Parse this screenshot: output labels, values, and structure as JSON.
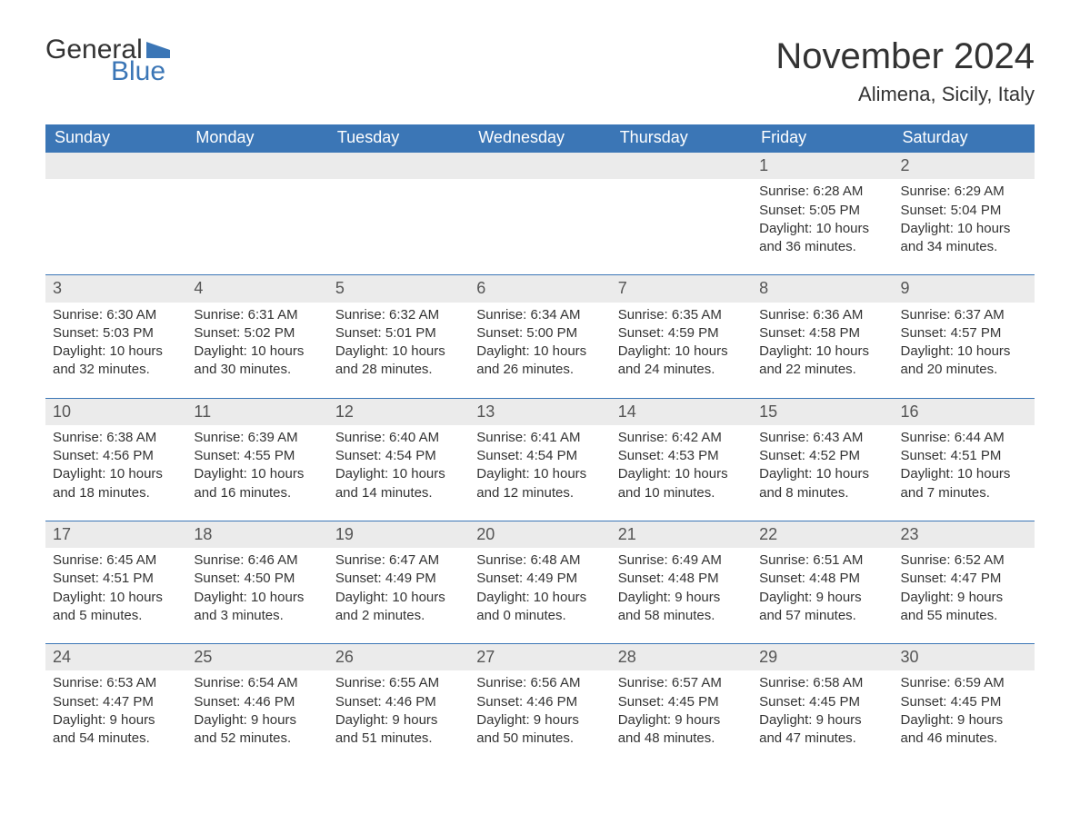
{
  "logo": {
    "text_top": "General",
    "text_bottom": "Blue",
    "flag_color": "#3b76b6"
  },
  "title": "November 2024",
  "location": "Alimena, Sicily, Italy",
  "colors": {
    "header_bg": "#3b76b6",
    "header_text": "#ffffff",
    "daynum_bg": "#ebebeb",
    "daynum_text": "#555555",
    "body_text": "#333333",
    "rule": "#3b76b6",
    "page_bg": "#ffffff"
  },
  "typography": {
    "title_fontsize": 40,
    "location_fontsize": 22,
    "weekday_fontsize": 18,
    "daynumber_fontsize": 18,
    "body_fontsize": 15
  },
  "weekdays": [
    "Sunday",
    "Monday",
    "Tuesday",
    "Wednesday",
    "Thursday",
    "Friday",
    "Saturday"
  ],
  "weeks": [
    [
      null,
      null,
      null,
      null,
      null,
      {
        "day": "1",
        "sunrise": "Sunrise: 6:28 AM",
        "sunset": "Sunset: 5:05 PM",
        "daylight1": "Daylight: 10 hours",
        "daylight2": "and 36 minutes."
      },
      {
        "day": "2",
        "sunrise": "Sunrise: 6:29 AM",
        "sunset": "Sunset: 5:04 PM",
        "daylight1": "Daylight: 10 hours",
        "daylight2": "and 34 minutes."
      }
    ],
    [
      {
        "day": "3",
        "sunrise": "Sunrise: 6:30 AM",
        "sunset": "Sunset: 5:03 PM",
        "daylight1": "Daylight: 10 hours",
        "daylight2": "and 32 minutes."
      },
      {
        "day": "4",
        "sunrise": "Sunrise: 6:31 AM",
        "sunset": "Sunset: 5:02 PM",
        "daylight1": "Daylight: 10 hours",
        "daylight2": "and 30 minutes."
      },
      {
        "day": "5",
        "sunrise": "Sunrise: 6:32 AM",
        "sunset": "Sunset: 5:01 PM",
        "daylight1": "Daylight: 10 hours",
        "daylight2": "and 28 minutes."
      },
      {
        "day": "6",
        "sunrise": "Sunrise: 6:34 AM",
        "sunset": "Sunset: 5:00 PM",
        "daylight1": "Daylight: 10 hours",
        "daylight2": "and 26 minutes."
      },
      {
        "day": "7",
        "sunrise": "Sunrise: 6:35 AM",
        "sunset": "Sunset: 4:59 PM",
        "daylight1": "Daylight: 10 hours",
        "daylight2": "and 24 minutes."
      },
      {
        "day": "8",
        "sunrise": "Sunrise: 6:36 AM",
        "sunset": "Sunset: 4:58 PM",
        "daylight1": "Daylight: 10 hours",
        "daylight2": "and 22 minutes."
      },
      {
        "day": "9",
        "sunrise": "Sunrise: 6:37 AM",
        "sunset": "Sunset: 4:57 PM",
        "daylight1": "Daylight: 10 hours",
        "daylight2": "and 20 minutes."
      }
    ],
    [
      {
        "day": "10",
        "sunrise": "Sunrise: 6:38 AM",
        "sunset": "Sunset: 4:56 PM",
        "daylight1": "Daylight: 10 hours",
        "daylight2": "and 18 minutes."
      },
      {
        "day": "11",
        "sunrise": "Sunrise: 6:39 AM",
        "sunset": "Sunset: 4:55 PM",
        "daylight1": "Daylight: 10 hours",
        "daylight2": "and 16 minutes."
      },
      {
        "day": "12",
        "sunrise": "Sunrise: 6:40 AM",
        "sunset": "Sunset: 4:54 PM",
        "daylight1": "Daylight: 10 hours",
        "daylight2": "and 14 minutes."
      },
      {
        "day": "13",
        "sunrise": "Sunrise: 6:41 AM",
        "sunset": "Sunset: 4:54 PM",
        "daylight1": "Daylight: 10 hours",
        "daylight2": "and 12 minutes."
      },
      {
        "day": "14",
        "sunrise": "Sunrise: 6:42 AM",
        "sunset": "Sunset: 4:53 PM",
        "daylight1": "Daylight: 10 hours",
        "daylight2": "and 10 minutes."
      },
      {
        "day": "15",
        "sunrise": "Sunrise: 6:43 AM",
        "sunset": "Sunset: 4:52 PM",
        "daylight1": "Daylight: 10 hours",
        "daylight2": "and 8 minutes."
      },
      {
        "day": "16",
        "sunrise": "Sunrise: 6:44 AM",
        "sunset": "Sunset: 4:51 PM",
        "daylight1": "Daylight: 10 hours",
        "daylight2": "and 7 minutes."
      }
    ],
    [
      {
        "day": "17",
        "sunrise": "Sunrise: 6:45 AM",
        "sunset": "Sunset: 4:51 PM",
        "daylight1": "Daylight: 10 hours",
        "daylight2": "and 5 minutes."
      },
      {
        "day": "18",
        "sunrise": "Sunrise: 6:46 AM",
        "sunset": "Sunset: 4:50 PM",
        "daylight1": "Daylight: 10 hours",
        "daylight2": "and 3 minutes."
      },
      {
        "day": "19",
        "sunrise": "Sunrise: 6:47 AM",
        "sunset": "Sunset: 4:49 PM",
        "daylight1": "Daylight: 10 hours",
        "daylight2": "and 2 minutes."
      },
      {
        "day": "20",
        "sunrise": "Sunrise: 6:48 AM",
        "sunset": "Sunset: 4:49 PM",
        "daylight1": "Daylight: 10 hours",
        "daylight2": "and 0 minutes."
      },
      {
        "day": "21",
        "sunrise": "Sunrise: 6:49 AM",
        "sunset": "Sunset: 4:48 PM",
        "daylight1": "Daylight: 9 hours",
        "daylight2": "and 58 minutes."
      },
      {
        "day": "22",
        "sunrise": "Sunrise: 6:51 AM",
        "sunset": "Sunset: 4:48 PM",
        "daylight1": "Daylight: 9 hours",
        "daylight2": "and 57 minutes."
      },
      {
        "day": "23",
        "sunrise": "Sunrise: 6:52 AM",
        "sunset": "Sunset: 4:47 PM",
        "daylight1": "Daylight: 9 hours",
        "daylight2": "and 55 minutes."
      }
    ],
    [
      {
        "day": "24",
        "sunrise": "Sunrise: 6:53 AM",
        "sunset": "Sunset: 4:47 PM",
        "daylight1": "Daylight: 9 hours",
        "daylight2": "and 54 minutes."
      },
      {
        "day": "25",
        "sunrise": "Sunrise: 6:54 AM",
        "sunset": "Sunset: 4:46 PM",
        "daylight1": "Daylight: 9 hours",
        "daylight2": "and 52 minutes."
      },
      {
        "day": "26",
        "sunrise": "Sunrise: 6:55 AM",
        "sunset": "Sunset: 4:46 PM",
        "daylight1": "Daylight: 9 hours",
        "daylight2": "and 51 minutes."
      },
      {
        "day": "27",
        "sunrise": "Sunrise: 6:56 AM",
        "sunset": "Sunset: 4:46 PM",
        "daylight1": "Daylight: 9 hours",
        "daylight2": "and 50 minutes."
      },
      {
        "day": "28",
        "sunrise": "Sunrise: 6:57 AM",
        "sunset": "Sunset: 4:45 PM",
        "daylight1": "Daylight: 9 hours",
        "daylight2": "and 48 minutes."
      },
      {
        "day": "29",
        "sunrise": "Sunrise: 6:58 AM",
        "sunset": "Sunset: 4:45 PM",
        "daylight1": "Daylight: 9 hours",
        "daylight2": "and 47 minutes."
      },
      {
        "day": "30",
        "sunrise": "Sunrise: 6:59 AM",
        "sunset": "Sunset: 4:45 PM",
        "daylight1": "Daylight: 9 hours",
        "daylight2": "and 46 minutes."
      }
    ]
  ]
}
